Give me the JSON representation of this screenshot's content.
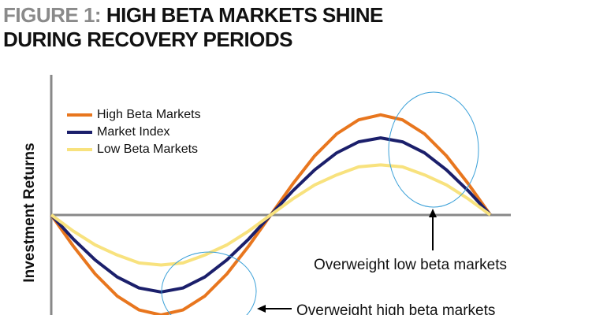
{
  "chart_data": {
    "type": "line",
    "figure_label": "FIGURE 1:",
    "title": "HIGH BETA MARKETS SHINE DURING RECOVERY PERIODS",
    "y_label": "Investment Returns",
    "x": [
      0,
      0.05,
      0.1,
      0.15,
      0.2,
      0.25,
      0.3,
      0.35,
      0.4,
      0.45,
      0.5,
      0.55,
      0.6,
      0.65,
      0.7,
      0.75,
      0.8,
      0.85,
      0.9,
      0.95,
      1
    ],
    "xlim": [
      0,
      1
    ],
    "ylim": [
      -1,
      1.4
    ],
    "series": [
      {
        "name": "High Beta Markets",
        "color": "#e8761e",
        "values": [
          0,
          -0.31,
          -0.59,
          -0.81,
          -0.95,
          -1,
          -0.95,
          -0.81,
          -0.59,
          -0.31,
          0,
          0.31,
          0.59,
          0.81,
          0.95,
          1,
          0.95,
          0.81,
          0.59,
          0.31,
          0
        ]
      },
      {
        "name": "Market Index",
        "color": "#1b1f6b",
        "values": [
          0,
          -0.24,
          -0.45,
          -0.62,
          -0.73,
          -0.77,
          -0.73,
          -0.62,
          -0.45,
          -0.24,
          0,
          0.24,
          0.45,
          0.62,
          0.73,
          0.77,
          0.73,
          0.62,
          0.45,
          0.24,
          0
        ]
      },
      {
        "name": "Low Beta Markets",
        "color": "#f8e27e",
        "values": [
          0,
          -0.16,
          -0.3,
          -0.4,
          -0.48,
          -0.5,
          -0.48,
          -0.4,
          -0.3,
          -0.16,
          0,
          0.16,
          0.3,
          0.4,
          0.48,
          0.5,
          0.48,
          0.4,
          0.3,
          0.16,
          0
        ]
      }
    ],
    "legend": "upper left",
    "annotations": [
      "Overweight low beta markets",
      "Overweight high beta markets"
    ]
  }
}
